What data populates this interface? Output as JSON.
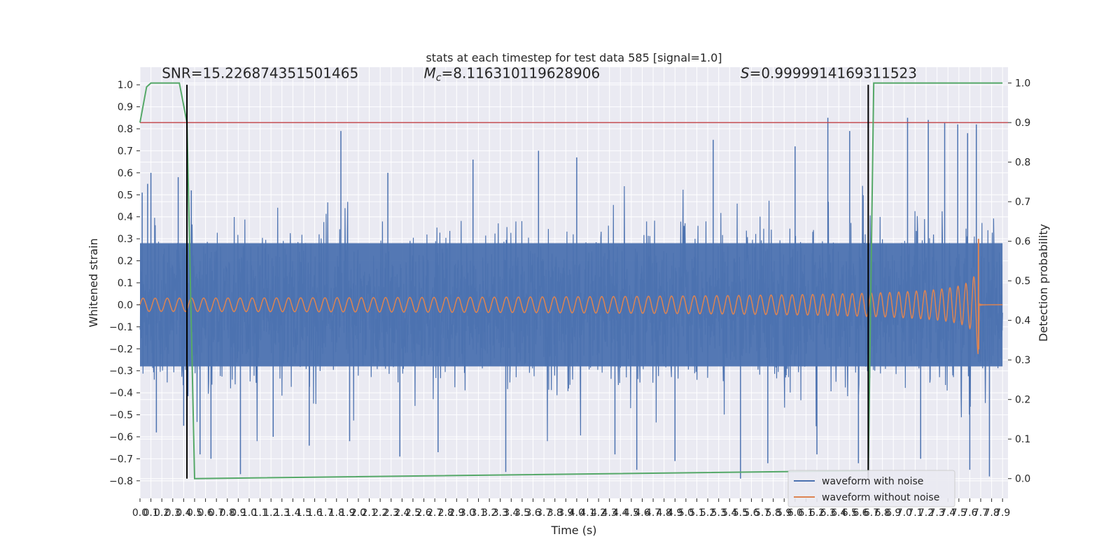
{
  "chart_data": {
    "type": "line",
    "title": "stats at each timestep for test data 585 [signal=1.0]",
    "xlabel": "Time (s)",
    "ylabel": "Whitened strain",
    "y2label": "Detection probability",
    "xlim": [
      0.0,
      7.95
    ],
    "ylim": [
      -0.88,
      1.08
    ],
    "y2lim": [
      -0.05,
      1.04
    ],
    "x_ticks": [
      0.0,
      0.1,
      0.2,
      0.3,
      0.4,
      0.5,
      0.6,
      0.7,
      0.8,
      0.9,
      1.0,
      1.1,
      1.2,
      1.3,
      1.4,
      1.5,
      1.6,
      1.7,
      1.8,
      1.9,
      2.0,
      2.1,
      2.2,
      2.3,
      2.4,
      2.5,
      2.6,
      2.7,
      2.8,
      2.9,
      3.0,
      3.1,
      3.2,
      3.3,
      3.4,
      3.5,
      3.6,
      3.7,
      3.8,
      3.9,
      4.0,
      4.1,
      4.2,
      4.3,
      4.4,
      4.5,
      4.6,
      4.7,
      4.8,
      4.9,
      5.0,
      5.1,
      5.2,
      5.3,
      5.4,
      5.5,
      5.6,
      5.7,
      5.8,
      5.9,
      6.0,
      6.1,
      6.2,
      6.3,
      6.4,
      6.5,
      6.6,
      6.7,
      6.8,
      6.9,
      7.0,
      7.1,
      7.2,
      7.3,
      7.4,
      7.5,
      7.6,
      7.7,
      7.8,
      7.9
    ],
    "y_ticks": [
      -0.8,
      -0.7,
      -0.6,
      -0.5,
      -0.4,
      -0.3,
      -0.2,
      -0.1,
      0.0,
      0.1,
      0.2,
      0.3,
      0.4,
      0.5,
      0.6,
      0.7,
      0.8,
      0.9,
      1.0
    ],
    "y2_ticks": [
      0.0,
      0.1,
      0.2,
      0.3,
      0.4,
      0.5,
      0.6,
      0.7,
      0.8,
      0.9,
      1.0
    ],
    "grid": true,
    "legend_position": "bottom-right",
    "annotations": [
      {
        "text": "SNR=15.226874351501465",
        "x": 0.2,
        "y": 1.03
      },
      {
        "prefix": "M",
        "sub": "c",
        "text": "=8.116310119628906",
        "x": 2.6,
        "y": 1.03
      },
      {
        "prefix": "S",
        "text": "=0.9999914169311523",
        "x": 5.5,
        "y": 1.03
      }
    ],
    "vlines": [
      {
        "x": 0.43,
        "y_from": -0.79,
        "y_to": 1.0,
        "color": "#000000"
      },
      {
        "x": 6.67,
        "y_from": -0.79,
        "y_to": 1.0,
        "color": "#000000"
      }
    ],
    "threshold": {
      "y2": 0.9,
      "color": "#c44e52"
    },
    "series": [
      {
        "name": "waveform with noise",
        "color": "#4c72b0",
        "noise_envelope": 0.4,
        "spikes": [
          {
            "x": 0.02,
            "y": 0.51
          },
          {
            "x": 0.07,
            "y": 0.55
          },
          {
            "x": 0.1,
            "y": 0.6
          },
          {
            "x": 0.15,
            "y": -0.58
          },
          {
            "x": 0.35,
            "y": 0.58
          },
          {
            "x": 0.4,
            "y": -0.55
          },
          {
            "x": 0.47,
            "y": 0.52
          },
          {
            "x": 0.55,
            "y": -0.68
          },
          {
            "x": 0.65,
            "y": -0.7
          },
          {
            "x": 0.92,
            "y": -0.77
          },
          {
            "x": 1.22,
            "y": -0.6
          },
          {
            "x": 1.55,
            "y": -0.64
          },
          {
            "x": 1.84,
            "y": 0.79
          },
          {
            "x": 1.92,
            "y": -0.62
          },
          {
            "x": 2.27,
            "y": 0.6
          },
          {
            "x": 2.38,
            "y": -0.69
          },
          {
            "x": 2.73,
            "y": -0.67
          },
          {
            "x": 3.05,
            "y": 0.66
          },
          {
            "x": 3.35,
            "y": -0.76
          },
          {
            "x": 3.65,
            "y": 0.7
          },
          {
            "x": 4.0,
            "y": 0.67
          },
          {
            "x": 4.35,
            "y": -0.68
          },
          {
            "x": 4.55,
            "y": -0.75
          },
          {
            "x": 4.9,
            "y": -0.71
          },
          {
            "x": 5.25,
            "y": 0.75
          },
          {
            "x": 5.5,
            "y": -0.79
          },
          {
            "x": 5.75,
            "y": -0.72
          },
          {
            "x": 6.0,
            "y": 0.72
          },
          {
            "x": 6.2,
            "y": -0.68
          },
          {
            "x": 6.3,
            "y": 0.85
          },
          {
            "x": 6.5,
            "y": 0.79
          },
          {
            "x": 6.58,
            "y": -0.72
          },
          {
            "x": 7.03,
            "y": 0.85
          },
          {
            "x": 7.22,
            "y": 0.84
          },
          {
            "x": 7.37,
            "y": 0.83
          },
          {
            "x": 7.49,
            "y": 0.82
          },
          {
            "x": 7.58,
            "y": 0.78
          },
          {
            "x": 7.6,
            "y": -0.75
          },
          {
            "x": 7.78,
            "y": -0.78
          },
          {
            "x": 7.66,
            "y": 0.82
          },
          {
            "x": 7.15,
            "y": -0.7
          }
        ]
      },
      {
        "name": "waveform without noise",
        "color": "#dd8452",
        "chirp": {
          "start_amplitude": 0.03,
          "merger_x": 7.68,
          "peak_high": 0.3,
          "peak_low": -0.2,
          "post_merger_amplitude": 0.005,
          "start_freq_hz": 9,
          "end_freq_hz": 60
        }
      },
      {
        "name": "",
        "color": "#55a868",
        "axis": "right",
        "x": [
          0.0,
          0.06,
          0.1,
          0.2,
          0.3,
          0.36,
          0.43,
          0.5,
          6.67,
          6.72,
          7.9
        ],
        "y": [
          0.9,
          0.99,
          1.0,
          1.0,
          1.0,
          1.0,
          0.9,
          0.0,
          0.02,
          1.0,
          1.0
        ]
      }
    ]
  }
}
